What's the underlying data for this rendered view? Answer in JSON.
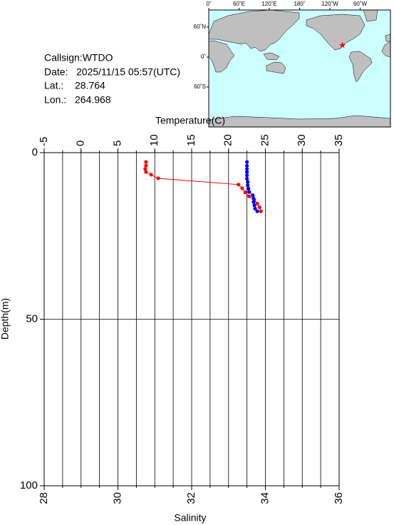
{
  "info": {
    "callsign": "Callsign:WTDO",
    "date_label": "Date:",
    "date": "2025/11/15 05:57(UTC)",
    "lat_label": "Lat.:",
    "lat": 28.764,
    "lon_label": "Lon.:",
    "lon": 264.968
  },
  "map": {
    "lon_labels": [
      "0˚",
      "60˚E",
      "120˚E",
      "180˚",
      "120˚W",
      "60˚W"
    ],
    "lat_labels": [
      "60˚N",
      "0˚",
      "60˚S"
    ],
    "marker_color": "#ff0000"
  },
  "chart_data": {
    "type": "profile",
    "x_label": "Salinity",
    "x2_label": "Temperature(C)",
    "y_label": "Depth(m)",
    "xlim": [
      28,
      36
    ],
    "xticks": [
      28,
      30,
      32,
      34,
      36
    ],
    "x2lim": [
      -5,
      35
    ],
    "x2ticks": [
      -5,
      0,
      5,
      10,
      15,
      20,
      25,
      30,
      35
    ],
    "ylim": [
      0,
      100
    ],
    "yticks": [
      0,
      50,
      100
    ],
    "y_inverted": true,
    "grid": true,
    "xgrid_step": 0.5,
    "series": [
      {
        "axis": "x",
        "color": "#ff0000",
        "depth": [
          2.8,
          3.9,
          4.9,
          5.8,
          6.6,
          7.7,
          9.6,
          10.7,
          11.9,
          13.1,
          14.2,
          15.3,
          16.4,
          17.6
        ],
        "values": [
          30.76,
          30.76,
          30.74,
          30.76,
          30.9,
          31.09,
          33.27,
          33.37,
          33.45,
          33.56,
          33.7,
          33.78,
          33.84,
          33.88
        ]
      },
      {
        "axis": "x2",
        "color": "#0000ff",
        "depth": [
          2.8,
          3.9,
          4.9,
          5.8,
          6.8,
          7.8,
          8.8,
          9.8,
          10.8,
          11.8,
          12.8,
          13.8,
          14.8,
          15.8,
          16.8,
          17.6
        ],
        "values": [
          22.5,
          22.5,
          22.5,
          22.5,
          22.5,
          22.5,
          22.6,
          22.6,
          22.7,
          22.8,
          23.3,
          23.4,
          23.4,
          23.5,
          23.6,
          23.9
        ]
      }
    ]
  }
}
